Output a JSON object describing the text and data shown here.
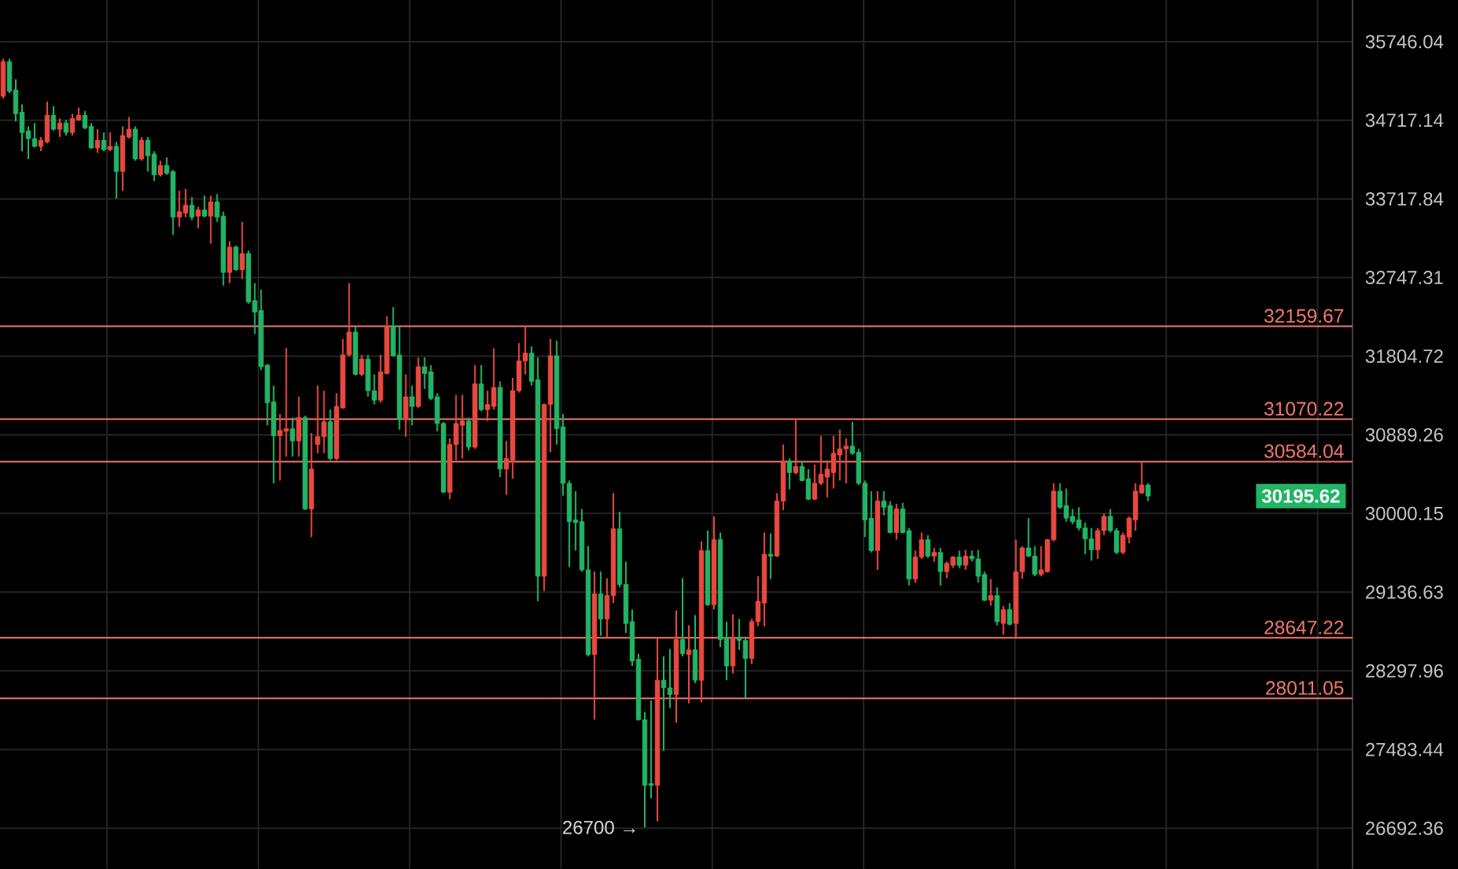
{
  "chart_data": {
    "type": "candlestick",
    "categories": [
      null,
      null,
      null,
      null,
      null,
      null,
      null,
      null,
      null,
      null,
      null,
      null,
      null,
      null,
      null,
      null,
      null,
      null,
      null,
      null,
      null,
      null,
      null,
      null,
      null,
      null,
      null,
      null,
      null,
      null,
      null,
      null,
      null,
      null,
      null,
      null,
      null,
      null,
      null,
      null,
      null,
      null,
      null,
      null,
      null,
      null,
      null,
      null,
      null,
      null,
      null,
      null,
      null,
      null,
      null,
      null,
      null,
      null,
      null,
      null,
      null,
      null,
      null,
      null,
      null,
      null,
      null,
      null,
      null,
      null,
      null,
      null,
      null,
      null,
      null,
      null,
      null,
      null,
      null,
      null,
      null,
      null,
      null,
      null,
      null,
      null,
      null,
      null,
      null,
      null,
      null,
      null,
      null,
      null,
      null,
      null,
      null,
      null,
      null,
      null,
      null,
      null,
      null,
      null,
      null,
      null,
      null,
      null,
      null,
      null,
      null,
      null,
      null,
      null,
      null,
      null,
      null,
      null,
      null,
      null,
      null,
      null,
      null,
      null,
      null,
      null,
      null,
      null,
      null,
      null,
      null,
      null,
      null,
      null,
      null,
      null,
      null,
      null,
      null,
      null,
      null,
      null,
      null,
      null,
      null,
      null,
      null,
      null,
      null,
      null,
      null,
      null,
      null,
      null,
      null,
      null,
      null,
      null,
      null,
      null,
      null,
      null,
      null,
      null,
      null,
      null,
      null,
      null,
      null,
      null,
      null,
      null,
      null,
      null,
      null,
      null,
      null,
      null,
      null,
      null,
      null,
      null,
      null,
      null,
      null,
      null,
      null,
      null,
      null,
      null,
      null,
      null,
      null,
      null,
      null,
      null,
      null,
      null,
      null,
      null,
      null,
      null,
      null,
      null,
      null,
      null,
      null,
      null,
      null,
      null,
      null,
      null,
      null,
      null,
      null
    ],
    "ohlc": [
      [
        35030,
        35520,
        35000,
        35480
      ],
      [
        35480,
        35520,
        35070,
        35090
      ],
      [
        35110,
        35250,
        34700,
        34800
      ],
      [
        34820,
        34920,
        34320,
        34560
      ],
      [
        34580,
        34640,
        34220,
        34480
      ],
      [
        34480,
        34680,
        34370,
        34380
      ],
      [
        34380,
        34500,
        34320,
        34460
      ],
      [
        34440,
        34960,
        34420,
        34780
      ],
      [
        34780,
        34900,
        34580,
        34600
      ],
      [
        34600,
        34740,
        34500,
        34680
      ],
      [
        34680,
        34720,
        34520,
        34560
      ],
      [
        34560,
        34800,
        34520,
        34740
      ],
      [
        34720,
        34880,
        34710,
        34780
      ],
      [
        34780,
        34840,
        34600,
        34620
      ],
      [
        34640,
        34680,
        34350,
        34360
      ],
      [
        34360,
        34600,
        34300,
        34460
      ],
      [
        34460,
        34560,
        34320,
        34340
      ],
      [
        34340,
        34560,
        34320,
        34380
      ],
      [
        34380,
        34440,
        33720,
        34060
      ],
      [
        34060,
        34640,
        33820,
        34520
      ],
      [
        34500,
        34760,
        34480,
        34600
      ],
      [
        34600,
        34640,
        34200,
        34220
      ],
      [
        34220,
        34500,
        34200,
        34460
      ],
      [
        34460,
        34500,
        34060,
        34260
      ],
      [
        34280,
        34320,
        33940,
        34020
      ],
      [
        34020,
        34200,
        34000,
        34140
      ],
      [
        34140,
        34240,
        34020,
        34040
      ],
      [
        34060,
        34080,
        33270,
        33490
      ],
      [
        33490,
        33820,
        33370,
        33560
      ],
      [
        33540,
        33840,
        33490,
        33640
      ],
      [
        33640,
        33740,
        33450,
        33490
      ],
      [
        33500,
        33620,
        33350,
        33580
      ],
      [
        33580,
        33760,
        33490,
        33500
      ],
      [
        33500,
        33760,
        33160,
        33680
      ],
      [
        33680,
        33780,
        33430,
        33490
      ],
      [
        33500,
        33560,
        32650,
        32810
      ],
      [
        32810,
        33190,
        32680,
        33120
      ],
      [
        33120,
        33140,
        32830,
        32840
      ],
      [
        32840,
        33430,
        32730,
        33040
      ],
      [
        33040,
        33080,
        32430,
        32450
      ],
      [
        32470,
        32680,
        32070,
        32330
      ],
      [
        32350,
        32600,
        31640,
        31680
      ],
      [
        31700,
        31710,
        31000,
        31260
      ],
      [
        31270,
        31460,
        30340,
        30880
      ],
      [
        30880,
        31130,
        30370,
        30940
      ],
      [
        30930,
        31900,
        30640,
        30960
      ],
      [
        30960,
        31090,
        30640,
        30820
      ],
      [
        30820,
        31330,
        30640,
        31090
      ],
      [
        31090,
        31110,
        30040,
        30050
      ],
      [
        30050,
        30910,
        29740,
        30500
      ],
      [
        30780,
        31460,
        30680,
        30870
      ],
      [
        30870,
        31400,
        30680,
        31040
      ],
      [
        31040,
        31180,
        30600,
        30620
      ],
      [
        30620,
        31370,
        30600,
        31220
      ],
      [
        31200,
        32010,
        31190,
        31820
      ],
      [
        31820,
        32680,
        31800,
        32090
      ],
      [
        32090,
        32160,
        31580,
        31590
      ],
      [
        31590,
        31820,
        31570,
        31770
      ],
      [
        31770,
        31820,
        31330,
        31400
      ],
      [
        31400,
        31590,
        31240,
        31290
      ],
      [
        31290,
        31820,
        31260,
        31620
      ],
      [
        31600,
        32280,
        31590,
        32160
      ],
      [
        32160,
        32390,
        31800,
        31810
      ],
      [
        31820,
        32160,
        30950,
        31070
      ],
      [
        31070,
        31590,
        30870,
        31330
      ],
      [
        31330,
        31460,
        31000,
        31220
      ],
      [
        31220,
        31790,
        31200,
        31680
      ],
      [
        31680,
        31790,
        31420,
        31600
      ],
      [
        31620,
        31700,
        31290,
        31310
      ],
      [
        31330,
        31370,
        30930,
        31020
      ],
      [
        31020,
        31040,
        30230,
        30240
      ],
      [
        30240,
        30850,
        30160,
        30780
      ],
      [
        30780,
        31350,
        30600,
        31020
      ],
      [
        31000,
        31350,
        30620,
        31050
      ],
      [
        31050,
        31090,
        30710,
        30750
      ],
      [
        30750,
        31700,
        30730,
        31480
      ],
      [
        31480,
        31700,
        31160,
        31180
      ],
      [
        31180,
        31400,
        31050,
        31240
      ],
      [
        31220,
        31900,
        31180,
        31440
      ],
      [
        31440,
        31510,
        30410,
        30500
      ],
      [
        30500,
        30820,
        30210,
        30620
      ],
      [
        30600,
        31550,
        30390,
        31400
      ],
      [
        31400,
        31960,
        31380,
        31750
      ],
      [
        31750,
        32160,
        31590,
        31840
      ],
      [
        31840,
        31920,
        31460,
        31510
      ],
      [
        31530,
        31790,
        29040,
        29310
      ],
      [
        29310,
        31250,
        29150,
        31240
      ],
      [
        31240,
        32010,
        30690,
        31810
      ],
      [
        31810,
        31990,
        30780,
        30960
      ],
      [
        30980,
        31130,
        30200,
        30340
      ],
      [
        30340,
        30370,
        29410,
        29910
      ],
      [
        29930,
        30250,
        29590,
        29900
      ],
      [
        29910,
        30050,
        29360,
        29380
      ],
      [
        29380,
        29640,
        28450,
        28470
      ],
      [
        28470,
        29360,
        27790,
        29120
      ],
      [
        29120,
        29360,
        28670,
        28850
      ],
      [
        28850,
        29290,
        28650,
        29100
      ],
      [
        29100,
        30230,
        29020,
        29830
      ],
      [
        29830,
        30020,
        29190,
        29220
      ],
      [
        29220,
        29470,
        28700,
        28800
      ],
      [
        28820,
        28950,
        28350,
        28400
      ],
      [
        28420,
        28480,
        27780,
        27790
      ],
      [
        27790,
        27870,
        26700,
        27120
      ],
      [
        27140,
        27990,
        26990,
        27120
      ],
      [
        27120,
        28650,
        26760,
        28200
      ],
      [
        28200,
        28450,
        27470,
        28120
      ],
      [
        28120,
        28530,
        27910,
        28050
      ],
      [
        28050,
        28940,
        27760,
        28630
      ],
      [
        28630,
        29290,
        28450,
        28480
      ],
      [
        28470,
        28780,
        27960,
        28520
      ],
      [
        28520,
        28890,
        28170,
        28200
      ],
      [
        28200,
        29690,
        27970,
        29590
      ],
      [
        29590,
        29810,
        28990,
        29000
      ],
      [
        29000,
        29970,
        28950,
        29710
      ],
      [
        29710,
        29790,
        28550,
        28630
      ],
      [
        28650,
        28820,
        28200,
        28350
      ],
      [
        28350,
        28900,
        28270,
        28650
      ],
      [
        28650,
        28850,
        28520,
        28620
      ],
      [
        28620,
        28660,
        28010,
        28430
      ],
      [
        28430,
        28850,
        28370,
        28820
      ],
      [
        28820,
        29310,
        28770,
        29040
      ],
      [
        29020,
        29790,
        28770,
        29550
      ],
      [
        29550,
        29780,
        29280,
        29530
      ],
      [
        29530,
        30230,
        29520,
        30140
      ],
      [
        30140,
        30780,
        30040,
        30590
      ],
      [
        30590,
        30620,
        30270,
        30460
      ],
      [
        30460,
        31070,
        30440,
        30530
      ],
      [
        30530,
        30590,
        30360,
        30370
      ],
      [
        30390,
        30500,
        30150,
        30160
      ],
      [
        30160,
        30550,
        30150,
        30340
      ],
      [
        30340,
        30880,
        30320,
        30440
      ],
      [
        30410,
        30600,
        30180,
        30500
      ],
      [
        30460,
        30880,
        30280,
        30680
      ],
      [
        30660,
        30950,
        30370,
        30730
      ],
      [
        30730,
        30850,
        30340,
        30760
      ],
      [
        30760,
        31040,
        30660,
        30680
      ],
      [
        30690,
        30730,
        30320,
        30340
      ],
      [
        30340,
        30370,
        29740,
        29930
      ],
      [
        29950,
        30250,
        29570,
        29590
      ],
      [
        29590,
        30250,
        29380,
        30140
      ],
      [
        30140,
        30250,
        29980,
        30070
      ],
      [
        30090,
        30140,
        29780,
        29790
      ],
      [
        29790,
        30110,
        29710,
        30050
      ],
      [
        30050,
        30120,
        29780,
        29790
      ],
      [
        29810,
        29840,
        29210,
        29280
      ],
      [
        29280,
        29590,
        29240,
        29520
      ],
      [
        29520,
        29790,
        29500,
        29710
      ],
      [
        29710,
        29760,
        29510,
        29530
      ],
      [
        29530,
        29620,
        29470,
        29570
      ],
      [
        29570,
        29620,
        29210,
        29360
      ],
      [
        29360,
        29470,
        29290,
        29450
      ],
      [
        29430,
        29530,
        29400,
        29520
      ],
      [
        29520,
        29590,
        29400,
        29430
      ],
      [
        29430,
        29600,
        29380,
        29530
      ],
      [
        29530,
        29590,
        29470,
        29500
      ],
      [
        29500,
        29600,
        29240,
        29310
      ],
      [
        29330,
        29360,
        29040,
        29050
      ],
      [
        29050,
        29280,
        28990,
        29100
      ],
      [
        29100,
        29190,
        28780,
        28820
      ],
      [
        28800,
        28990,
        28680,
        28950
      ],
      [
        28950,
        29020,
        28780,
        28790
      ],
      [
        28800,
        29710,
        28650,
        29360
      ],
      [
        29360,
        29640,
        29280,
        29620
      ],
      [
        29620,
        29950,
        29520,
        29530
      ],
      [
        29530,
        29640,
        29310,
        29330
      ],
      [
        29330,
        29640,
        29310,
        29380
      ],
      [
        29360,
        29720,
        29350,
        29710
      ],
      [
        29710,
        30340,
        29690,
        30250
      ],
      [
        30250,
        30340,
        30050,
        30070
      ],
      [
        30090,
        30280,
        29910,
        29950
      ],
      [
        29970,
        30050,
        29880,
        29910
      ],
      [
        29930,
        30070,
        29810,
        29840
      ],
      [
        29840,
        29900,
        29550,
        29720
      ],
      [
        29720,
        29840,
        29480,
        29600
      ],
      [
        29600,
        29840,
        29500,
        29810
      ],
      [
        29810,
        30000,
        29760,
        29970
      ],
      [
        29970,
        30050,
        29790,
        29810
      ],
      [
        29810,
        29840,
        29550,
        29570
      ],
      [
        29570,
        29790,
        29550,
        29760
      ],
      [
        29740,
        29970,
        29670,
        29950
      ],
      [
        29930,
        30340,
        29810,
        30250
      ],
      [
        30230,
        30580,
        30220,
        30320
      ],
      [
        30320,
        30340,
        30140,
        30195.62
      ],
      null,
      null,
      null,
      null,
      null,
      null,
      null,
      null,
      null,
      null,
      null,
      null,
      null,
      null,
      null,
      null,
      null,
      null,
      null,
      null,
      null,
      null,
      null,
      null,
      null,
      null,
      null,
      null,
      null,
      null,
      null,
      null
    ],
    "colors": [
      "#e8493f",
      "#22b464",
      "#22b464",
      "#22b464",
      "#22b464",
      "#22b464",
      "#e8493f",
      "#e8493f",
      "#22b464",
      "#e8493f",
      "#22b464",
      "#e8493f",
      "#e8493f",
      "#22b464",
      "#22b464",
      "#e8493f",
      "#22b464",
      "#e8493f",
      "#22b464",
      "#e8493f",
      "#e8493f",
      "#22b464",
      "#e8493f",
      "#22b464",
      "#22b464",
      "#e8493f",
      "#22b464",
      "#22b464",
      "#e8493f",
      "#e8493f",
      "#22b464",
      "#e8493f",
      "#22b464",
      "#e8493f",
      "#22b464",
      "#22b464",
      "#e8493f",
      "#22b464",
      "#e8493f",
      "#22b464",
      "#22b464",
      "#22b464",
      "#22b464",
      "#22b464",
      "#e8493f",
      "#e8493f",
      "#22b464",
      "#e8493f",
      "#22b464",
      "#e8493f",
      "#e8493f",
      "#e8493f",
      "#22b464",
      "#e8493f",
      "#e8493f",
      "#e8493f",
      "#22b464",
      "#e8493f",
      "#22b464",
      "#22b464",
      "#e8493f",
      "#e8493f",
      "#22b464",
      "#22b464",
      "#e8493f",
      "#22b464",
      "#e8493f",
      "#22b464",
      "#22b464",
      "#22b464",
      "#22b464",
      "#e8493f",
      "#e8493f",
      "#e8493f",
      "#22b464",
      "#e8493f",
      "#22b464",
      "#e8493f",
      "#e8493f",
      "#22b464",
      "#e8493f",
      "#e8493f",
      "#e8493f",
      "#e8493f",
      "#22b464",
      "#22b464",
      "#e8493f",
      "#e8493f",
      "#22b464",
      "#22b464",
      "#22b464",
      "#22b464",
      "#22b464",
      "#22b464",
      "#e8493f",
      "#22b464",
      "#e8493f",
      "#e8493f",
      "#22b464",
      "#22b464",
      "#22b464",
      "#22b464",
      "#22b464",
      "#22b464",
      "#e8493f",
      "#22b464",
      "#22b464",
      "#e8493f",
      "#22b464",
      "#e8493f",
      "#22b464",
      "#e8493f",
      "#22b464",
      "#e8493f",
      "#22b464",
      "#22b464",
      "#e8493f",
      "#22b464",
      "#22b464",
      "#e8493f",
      "#e8493f",
      "#e8493f",
      "#22b464",
      "#e8493f",
      "#e8493f",
      "#22b464",
      "#e8493f",
      "#22b464",
      "#22b464",
      "#e8493f",
      "#e8493f",
      "#e8493f",
      "#e8493f",
      "#e8493f",
      "#e8493f",
      "#22b464",
      "#22b464",
      "#22b464",
      "#22b464",
      "#e8493f",
      "#22b464",
      "#22b464",
      "#e8493f",
      "#22b464",
      "#22b464",
      "#e8493f",
      "#e8493f",
      "#22b464",
      "#e8493f",
      "#22b464",
      "#e8493f",
      "#e8493f",
      "#22b464",
      "#e8493f",
      "#22b464",
      "#22b464",
      "#22b464",
      "#e8493f",
      "#22b464",
      "#e8493f",
      "#22b464",
      "#e8493f",
      "#e8493f",
      "#22b464",
      "#22b464",
      "#e8493f",
      "#e8493f",
      "#e8493f",
      "#22b464",
      "#22b464",
      "#22b464",
      "#22b464",
      "#22b464",
      "#22b464",
      "#e8493f",
      "#e8493f",
      "#22b464",
      "#22b464",
      "#e8493f",
      "#e8493f",
      "#e8493f",
      "#e8493f",
      "#22b464",
      null,
      null,
      null,
      null,
      null,
      null,
      null,
      null,
      null,
      null,
      null,
      null,
      null,
      null,
      null,
      null,
      null,
      null,
      null,
      null,
      null,
      null,
      null,
      null,
      null,
      null,
      null,
      null,
      null,
      null,
      null,
      null
    ],
    "ylim": [
      26295,
      36308
    ],
    "yticks": [
      26692.36,
      27483.44,
      28297.96,
      29136.63,
      30000.15,
      30889.26,
      31804.72,
      32747.31,
      33717.84,
      34717.14,
      35746.04
    ],
    "log": true,
    "grid": true,
    "ref_lines": [
      {
        "axis": "y",
        "value": 32159.67,
        "label": "32159.67",
        "color": "#f0786c"
      },
      {
        "axis": "y",
        "value": 31070.22,
        "label": "31070.22",
        "color": "#f0786c"
      },
      {
        "axis": "y",
        "value": 30584.04,
        "label": "30584.04",
        "color": "#f0786c"
      },
      {
        "axis": "y",
        "value": 28647.22,
        "label": "28647.22",
        "color": "#f0786c"
      },
      {
        "axis": "y",
        "value": 28011.05,
        "label": "28011.05",
        "color": "#f0786c"
      }
    ],
    "annotations": [
      "26700 →",
      "30195.62"
    ]
  }
}
